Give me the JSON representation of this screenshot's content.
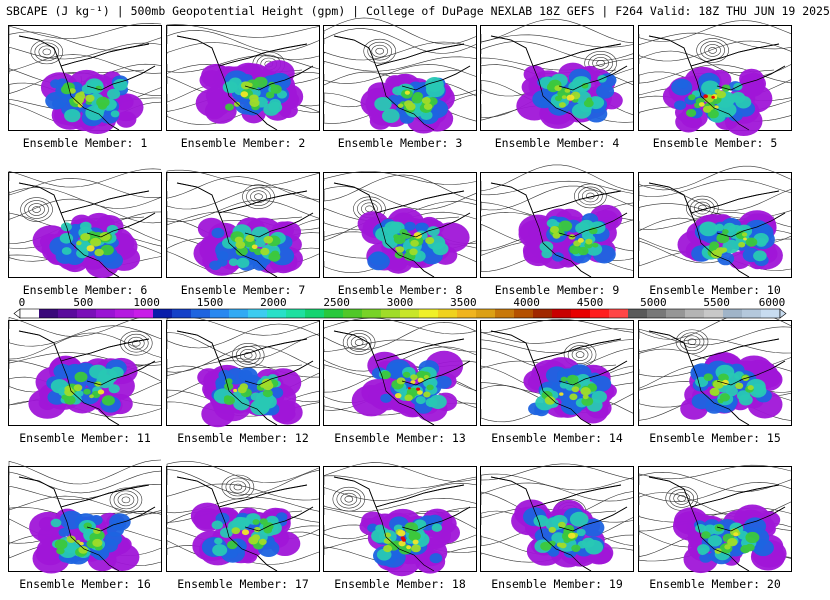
{
  "header": {
    "title": "SBCAPE (J kg⁻¹) | 500mb Geopotential Height (gpm) | College of DuPage NEXLAB 18Z GEFS | F264 Valid: 18Z THU JUN 19 2025"
  },
  "panels": [
    {
      "label": "Ensemble Member: 1",
      "cape_level": 0.55
    },
    {
      "label": "Ensemble Member: 2",
      "cape_level": 0.55
    },
    {
      "label": "Ensemble Member: 3",
      "cape_level": 0.55
    },
    {
      "label": "Ensemble Member: 4",
      "cape_level": 0.5
    },
    {
      "label": "Ensemble Member: 5",
      "cape_level": 0.8
    },
    {
      "label": "Ensemble Member: 6",
      "cape_level": 0.65
    },
    {
      "label": "Ensemble Member: 7",
      "cape_level": 0.55
    },
    {
      "label": "Ensemble Member: 8",
      "cape_level": 0.6
    },
    {
      "label": "Ensemble Member: 9",
      "cape_level": 0.45
    },
    {
      "label": "Ensemble Member: 10",
      "cape_level": 0.55
    },
    {
      "label": "Ensemble Member: 11",
      "cape_level": 0.5
    },
    {
      "label": "Ensemble Member: 12",
      "cape_level": 0.5
    },
    {
      "label": "Ensemble Member: 13",
      "cape_level": 0.85
    },
    {
      "label": "Ensemble Member: 14",
      "cape_level": 0.6
    },
    {
      "label": "Ensemble Member: 15",
      "cape_level": 0.45
    },
    {
      "label": "Ensemble Member: 16",
      "cape_level": 0.5
    },
    {
      "label": "Ensemble Member: 17",
      "cape_level": 0.5
    },
    {
      "label": "Ensemble Member: 18",
      "cape_level": 0.85
    },
    {
      "label": "Ensemble Member: 19",
      "cape_level": 0.6
    },
    {
      "label": "Ensemble Member: 20",
      "cape_level": 0.55
    }
  ],
  "colorbar": {
    "ticks": [
      "0",
      "500",
      "1000",
      "1500",
      "2000",
      "2500",
      "3000",
      "3500",
      "4000",
      "4500",
      "5000",
      "5500",
      "6000"
    ],
    "colors": [
      "#ffffff",
      "#3a0a7a",
      "#5a0c9c",
      "#7a10b8",
      "#9a14d4",
      "#b41ae0",
      "#c81ee8",
      "#0a1eaa",
      "#1440c8",
      "#1e64e0",
      "#2888f0",
      "#32aaf4",
      "#3cccf0",
      "#28e0c8",
      "#1ee0a0",
      "#14d470",
      "#28c83c",
      "#50c828",
      "#78d228",
      "#a0dc28",
      "#c8e628",
      "#f0f028",
      "#f0d21e",
      "#f0b41e",
      "#dca014",
      "#c8780a",
      "#b45000",
      "#a02800",
      "#c80000",
      "#e80000",
      "#ff1e1e",
      "#ff4646",
      "#5a5a5a",
      "#787878",
      "#969696",
      "#b4b4b4",
      "#c8c8c8",
      "#a0b4c8",
      "#b4c8dc",
      "#c8dcf0"
    ]
  }
}
